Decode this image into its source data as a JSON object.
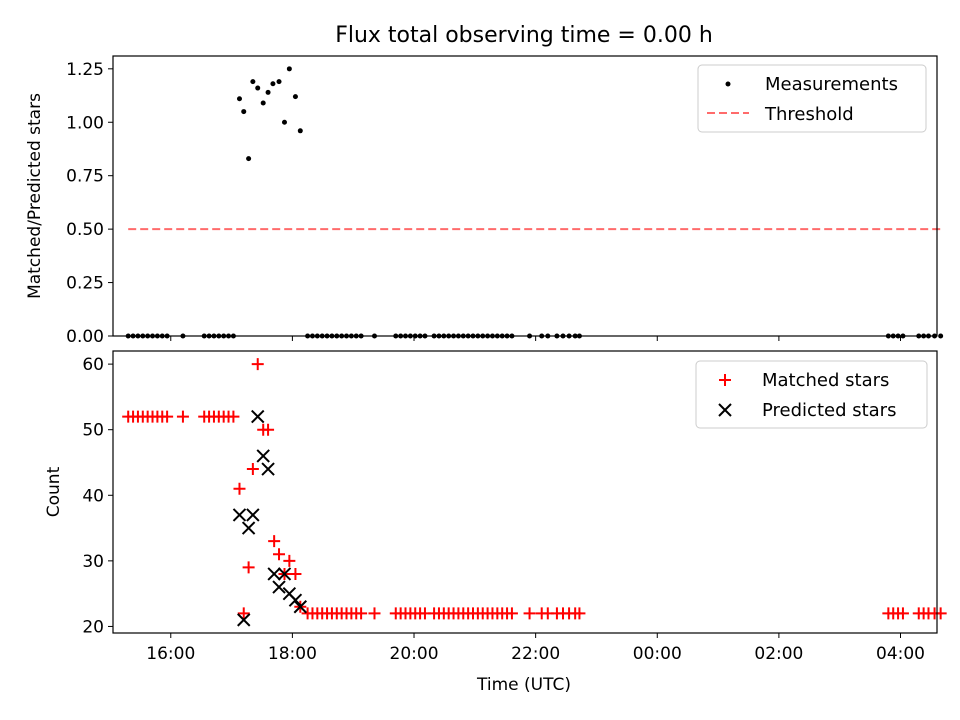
{
  "chart_data": [
    {
      "type": "scatter",
      "title": "Flux total observing time = 0.00 h",
      "ylabel": "Matched/Predicted stars",
      "xlabel": "",
      "xlim": [
        15.05,
        28.6
      ],
      "ylim": [
        0,
        1.31
      ],
      "yticks": [
        0.0,
        0.25,
        0.5,
        0.75,
        1.0,
        1.25
      ],
      "ytick_labels": [
        "0.00",
        "0.25",
        "0.50",
        "0.75",
        "1.00",
        "1.25"
      ],
      "legend_position": "top-right",
      "series": [
        {
          "name": "Measurements",
          "kind": "scatter",
          "marker": "dot",
          "color": "#000000",
          "points": [
            [
              15.3,
              0
            ],
            [
              15.38,
              0
            ],
            [
              15.46,
              0
            ],
            [
              15.54,
              0
            ],
            [
              15.62,
              0
            ],
            [
              15.7,
              0
            ],
            [
              15.78,
              0
            ],
            [
              15.86,
              0
            ],
            [
              15.94,
              0
            ],
            [
              16.2,
              0
            ],
            [
              16.55,
              0
            ],
            [
              16.63,
              0
            ],
            [
              16.71,
              0
            ],
            [
              16.79,
              0
            ],
            [
              16.87,
              0
            ],
            [
              16.95,
              0
            ],
            [
              17.03,
              0
            ],
            [
              17.13,
              1.11
            ],
            [
              17.2,
              1.05
            ],
            [
              17.28,
              0.83
            ],
            [
              17.35,
              1.19
            ],
            [
              17.43,
              1.16
            ],
            [
              17.52,
              1.09
            ],
            [
              17.6,
              1.14
            ],
            [
              17.68,
              1.18
            ],
            [
              17.78,
              1.19
            ],
            [
              17.87,
              1.0
            ],
            [
              17.95,
              1.25
            ],
            [
              18.05,
              1.12
            ],
            [
              18.13,
              0.96
            ],
            [
              18.25,
              0
            ],
            [
              18.33,
              0
            ],
            [
              18.41,
              0
            ],
            [
              18.49,
              0
            ],
            [
              18.57,
              0
            ],
            [
              18.65,
              0
            ],
            [
              18.73,
              0
            ],
            [
              18.81,
              0
            ],
            [
              18.89,
              0
            ],
            [
              18.97,
              0
            ],
            [
              19.05,
              0
            ],
            [
              19.13,
              0
            ],
            [
              19.35,
              0
            ],
            [
              19.7,
              0
            ],
            [
              19.78,
              0
            ],
            [
              19.86,
              0
            ],
            [
              19.94,
              0
            ],
            [
              20.02,
              0
            ],
            [
              20.1,
              0
            ],
            [
              20.18,
              0
            ],
            [
              20.33,
              0
            ],
            [
              20.41,
              0
            ],
            [
              20.49,
              0
            ],
            [
              20.57,
              0
            ],
            [
              20.65,
              0
            ],
            [
              20.73,
              0
            ],
            [
              20.81,
              0
            ],
            [
              20.89,
              0
            ],
            [
              20.97,
              0
            ],
            [
              21.05,
              0
            ],
            [
              21.13,
              0
            ],
            [
              21.21,
              0
            ],
            [
              21.29,
              0
            ],
            [
              21.37,
              0
            ],
            [
              21.45,
              0
            ],
            [
              21.53,
              0
            ],
            [
              21.61,
              0
            ],
            [
              21.9,
              0
            ],
            [
              22.1,
              0
            ],
            [
              22.2,
              0
            ],
            [
              22.35,
              0
            ],
            [
              22.45,
              0
            ],
            [
              22.55,
              0
            ],
            [
              22.65,
              0
            ],
            [
              22.72,
              0
            ],
            [
              27.8,
              0
            ],
            [
              27.88,
              0
            ],
            [
              27.96,
              0
            ],
            [
              28.04,
              0
            ],
            [
              28.3,
              0
            ],
            [
              28.38,
              0
            ],
            [
              28.46,
              0
            ],
            [
              28.56,
              0
            ],
            [
              28.66,
              0
            ]
          ]
        },
        {
          "name": "Threshold",
          "kind": "line",
          "dash": true,
          "color": "#ff6b6b",
          "points": [
            [
              15.3,
              0.5
            ],
            [
              28.7,
              0.5
            ]
          ]
        }
      ]
    },
    {
      "type": "scatter",
      "title": "",
      "ylabel": "Count",
      "xlabel": "Time (UTC)",
      "xlim": [
        15.05,
        28.6
      ],
      "ylim": [
        19,
        62
      ],
      "yticks": [
        20,
        30,
        40,
        50,
        60
      ],
      "ytick_labels": [
        "20",
        "30",
        "40",
        "50",
        "60"
      ],
      "xticks": [
        16,
        18,
        20,
        22,
        24,
        26,
        28
      ],
      "xtick_labels": [
        "16:00",
        "18:00",
        "20:00",
        "22:00",
        "00:00",
        "02:00",
        "04:00"
      ],
      "legend_position": "top-right",
      "series": [
        {
          "name": "Matched stars",
          "kind": "scatter",
          "marker": "plus",
          "color": "#ff0000",
          "points": [
            [
              15.3,
              52
            ],
            [
              15.38,
              52
            ],
            [
              15.46,
              52
            ],
            [
              15.54,
              52
            ],
            [
              15.62,
              52
            ],
            [
              15.7,
              52
            ],
            [
              15.78,
              52
            ],
            [
              15.86,
              52
            ],
            [
              15.94,
              52
            ],
            [
              16.2,
              52
            ],
            [
              16.55,
              52
            ],
            [
              16.63,
              52
            ],
            [
              16.71,
              52
            ],
            [
              16.79,
              52
            ],
            [
              16.87,
              52
            ],
            [
              16.95,
              52
            ],
            [
              17.03,
              52
            ],
            [
              17.13,
              41
            ],
            [
              17.2,
              22
            ],
            [
              17.28,
              29
            ],
            [
              17.35,
              44
            ],
            [
              17.43,
              60
            ],
            [
              17.52,
              50
            ],
            [
              17.6,
              50
            ],
            [
              17.7,
              33
            ],
            [
              17.78,
              31
            ],
            [
              17.87,
              28
            ],
            [
              17.95,
              30
            ],
            [
              18.05,
              28
            ],
            [
              18.13,
              23
            ],
            [
              18.25,
              22
            ],
            [
              18.33,
              22
            ],
            [
              18.41,
              22
            ],
            [
              18.49,
              22
            ],
            [
              18.57,
              22
            ],
            [
              18.65,
              22
            ],
            [
              18.73,
              22
            ],
            [
              18.81,
              22
            ],
            [
              18.89,
              22
            ],
            [
              18.97,
              22
            ],
            [
              19.05,
              22
            ],
            [
              19.13,
              22
            ],
            [
              19.35,
              22
            ],
            [
              19.7,
              22
            ],
            [
              19.78,
              22
            ],
            [
              19.86,
              22
            ],
            [
              19.94,
              22
            ],
            [
              20.02,
              22
            ],
            [
              20.1,
              22
            ],
            [
              20.18,
              22
            ],
            [
              20.33,
              22
            ],
            [
              20.41,
              22
            ],
            [
              20.49,
              22
            ],
            [
              20.57,
              22
            ],
            [
              20.65,
              22
            ],
            [
              20.73,
              22
            ],
            [
              20.81,
              22
            ],
            [
              20.89,
              22
            ],
            [
              20.97,
              22
            ],
            [
              21.05,
              22
            ],
            [
              21.13,
              22
            ],
            [
              21.21,
              22
            ],
            [
              21.29,
              22
            ],
            [
              21.37,
              22
            ],
            [
              21.45,
              22
            ],
            [
              21.53,
              22
            ],
            [
              21.61,
              22
            ],
            [
              21.9,
              22
            ],
            [
              22.1,
              22
            ],
            [
              22.2,
              22
            ],
            [
              22.35,
              22
            ],
            [
              22.45,
              22
            ],
            [
              22.55,
              22
            ],
            [
              22.65,
              22
            ],
            [
              22.72,
              22
            ],
            [
              27.8,
              22
            ],
            [
              27.88,
              22
            ],
            [
              27.96,
              22
            ],
            [
              28.04,
              22
            ],
            [
              28.3,
              22
            ],
            [
              28.38,
              22
            ],
            [
              28.46,
              22
            ],
            [
              28.56,
              22
            ],
            [
              28.66,
              22
            ]
          ]
        },
        {
          "name": "Predicted stars",
          "kind": "scatter",
          "marker": "x",
          "color": "#000000",
          "points": [
            [
              17.13,
              37
            ],
            [
              17.2,
              21
            ],
            [
              17.28,
              35
            ],
            [
              17.35,
              37
            ],
            [
              17.43,
              52
            ],
            [
              17.52,
              46
            ],
            [
              17.6,
              44
            ],
            [
              17.7,
              28
            ],
            [
              17.78,
              26
            ],
            [
              17.87,
              28
            ],
            [
              17.95,
              25
            ],
            [
              18.05,
              24
            ],
            [
              18.13,
              23
            ]
          ]
        }
      ]
    }
  ]
}
